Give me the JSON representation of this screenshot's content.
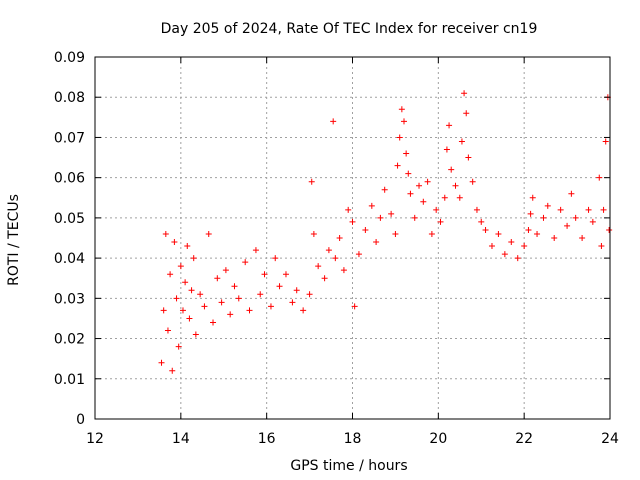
{
  "chart_data": {
    "type": "scatter",
    "title": "Day 205 of 2024, Rate Of TEC Index for receiver cn19",
    "xlabel": "GPS time / hours",
    "ylabel": "ROTI / TECUs",
    "xlim": [
      12,
      24
    ],
    "ylim": [
      0,
      0.09
    ],
    "grid": true,
    "x_ticks": [
      12,
      14,
      16,
      18,
      20,
      22,
      24
    ],
    "x_tick_labels": [
      "12",
      "14",
      "16",
      "18",
      "20",
      "22",
      "24"
    ],
    "y_ticks": [
      0,
      0.01,
      0.02,
      0.03,
      0.04,
      0.05,
      0.06,
      0.07,
      0.08,
      0.09
    ],
    "y_tick_labels": [
      "0",
      "0.01",
      "0.02",
      "0.03",
      "0.04",
      "0.05",
      "0.06",
      "0.07",
      "0.08",
      "0.09"
    ],
    "marker": "+",
    "color": "#ff0000",
    "series": [
      {
        "name": "ROTI",
        "points": [
          [
            13.55,
            0.014
          ],
          [
            13.6,
            0.027
          ],
          [
            13.65,
            0.046
          ],
          [
            13.7,
            0.022
          ],
          [
            13.75,
            0.036
          ],
          [
            13.8,
            0.012
          ],
          [
            13.85,
            0.044
          ],
          [
            13.9,
            0.03
          ],
          [
            13.95,
            0.018
          ],
          [
            14.0,
            0.038
          ],
          [
            14.05,
            0.027
          ],
          [
            14.1,
            0.034
          ],
          [
            14.15,
            0.043
          ],
          [
            14.2,
            0.025
          ],
          [
            14.25,
            0.032
          ],
          [
            14.3,
            0.04
          ],
          [
            14.35,
            0.021
          ],
          [
            14.45,
            0.031
          ],
          [
            14.55,
            0.028
          ],
          [
            14.65,
            0.046
          ],
          [
            14.75,
            0.024
          ],
          [
            14.85,
            0.035
          ],
          [
            14.95,
            0.029
          ],
          [
            15.05,
            0.037
          ],
          [
            15.15,
            0.026
          ],
          [
            15.25,
            0.033
          ],
          [
            15.35,
            0.03
          ],
          [
            15.5,
            0.039
          ],
          [
            15.6,
            0.027
          ],
          [
            15.75,
            0.042
          ],
          [
            15.85,
            0.031
          ],
          [
            15.95,
            0.036
          ],
          [
            16.1,
            0.028
          ],
          [
            16.2,
            0.04
          ],
          [
            16.3,
            0.033
          ],
          [
            16.45,
            0.036
          ],
          [
            16.6,
            0.029
          ],
          [
            16.7,
            0.032
          ],
          [
            16.85,
            0.027
          ],
          [
            17.0,
            0.031
          ],
          [
            17.05,
            0.059
          ],
          [
            17.1,
            0.046
          ],
          [
            17.2,
            0.038
          ],
          [
            17.35,
            0.035
          ],
          [
            17.45,
            0.042
          ],
          [
            17.55,
            0.074
          ],
          [
            17.6,
            0.04
          ],
          [
            17.7,
            0.045
          ],
          [
            17.8,
            0.037
          ],
          [
            17.9,
            0.052
          ],
          [
            18.0,
            0.049
          ],
          [
            18.05,
            0.028
          ],
          [
            18.15,
            0.041
          ],
          [
            18.3,
            0.047
          ],
          [
            18.45,
            0.053
          ],
          [
            18.55,
            0.044
          ],
          [
            18.65,
            0.05
          ],
          [
            18.75,
            0.057
          ],
          [
            18.9,
            0.051
          ],
          [
            19.0,
            0.046
          ],
          [
            19.05,
            0.063
          ],
          [
            19.1,
            0.07
          ],
          [
            19.15,
            0.077
          ],
          [
            19.2,
            0.074
          ],
          [
            19.25,
            0.066
          ],
          [
            19.3,
            0.061
          ],
          [
            19.35,
            0.056
          ],
          [
            19.45,
            0.05
          ],
          [
            19.55,
            0.058
          ],
          [
            19.65,
            0.054
          ],
          [
            19.75,
            0.059
          ],
          [
            19.85,
            0.046
          ],
          [
            19.95,
            0.052
          ],
          [
            20.05,
            0.049
          ],
          [
            20.15,
            0.055
          ],
          [
            20.2,
            0.067
          ],
          [
            20.25,
            0.073
          ],
          [
            20.3,
            0.062
          ],
          [
            20.4,
            0.058
          ],
          [
            20.5,
            0.055
          ],
          [
            20.55,
            0.069
          ],
          [
            20.6,
            0.081
          ],
          [
            20.65,
            0.076
          ],
          [
            20.7,
            0.065
          ],
          [
            20.8,
            0.059
          ],
          [
            20.9,
            0.052
          ],
          [
            21.0,
            0.049
          ],
          [
            21.1,
            0.047
          ],
          [
            21.25,
            0.043
          ],
          [
            21.4,
            0.046
          ],
          [
            21.55,
            0.041
          ],
          [
            21.7,
            0.044
          ],
          [
            21.85,
            0.04
          ],
          [
            22.0,
            0.043
          ],
          [
            22.1,
            0.047
          ],
          [
            22.15,
            0.051
          ],
          [
            22.2,
            0.055
          ],
          [
            22.3,
            0.046
          ],
          [
            22.45,
            0.05
          ],
          [
            22.55,
            0.053
          ],
          [
            22.7,
            0.045
          ],
          [
            22.85,
            0.052
          ],
          [
            23.0,
            0.048
          ],
          [
            23.1,
            0.056
          ],
          [
            23.2,
            0.05
          ],
          [
            23.35,
            0.045
          ],
          [
            23.5,
            0.052
          ],
          [
            23.6,
            0.049
          ],
          [
            23.75,
            0.06
          ],
          [
            23.8,
            0.043
          ],
          [
            23.85,
            0.052
          ],
          [
            23.9,
            0.069
          ],
          [
            23.95,
            0.08
          ],
          [
            23.98,
            0.047
          ]
        ]
      }
    ]
  }
}
